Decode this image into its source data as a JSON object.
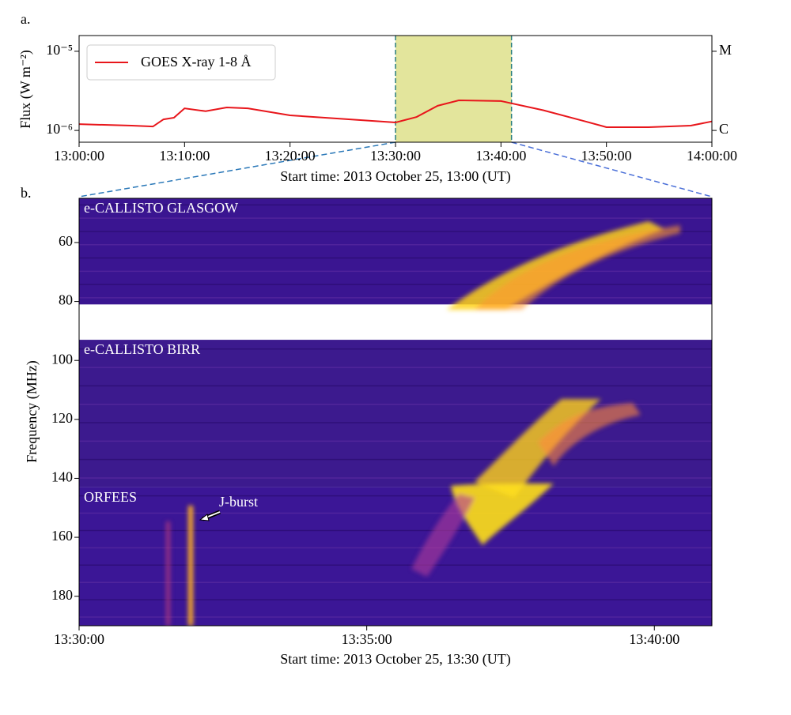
{
  "panel_a": {
    "label": "a."
  },
  "panel_b": {
    "label": "b."
  },
  "chart_data": [
    {
      "type": "line",
      "ylabel": "Flux (W m⁻²)",
      "xlabel": "Start time: 2013 October 25, 13:00 (UT)",
      "log_y": true,
      "x": [
        0,
        5,
        7,
        8,
        9,
        10,
        12,
        14,
        16,
        20,
        25,
        30,
        32,
        34,
        36,
        40,
        44,
        48,
        50,
        54,
        58,
        60
      ],
      "series": [
        {
          "name": "GOES X-ray 1-8 Å",
          "color": "#e8161b",
          "values": [
            1.2e-06,
            1.15e-06,
            1.12e-06,
            1.38e-06,
            1.45e-06,
            1.9e-06,
            1.75e-06,
            1.95e-06,
            1.9e-06,
            1.55e-06,
            1.4e-06,
            1.26e-06,
            1.48e-06,
            2.05e-06,
            2.4e-06,
            2.35e-06,
            1.8e-06,
            1.3e-06,
            1.1e-06,
            1.1e-06,
            1.15e-06,
            1.3e-06
          ]
        }
      ],
      "highlight": [
        30,
        41
      ],
      "highlight_color": "#e3e59c",
      "xlim": [
        0,
        60
      ],
      "xticks": [
        {
          "value": 0,
          "label": "13:00:00"
        },
        {
          "value": 10,
          "label": "13:10:00"
        },
        {
          "value": 20,
          "label": "13:20:00"
        },
        {
          "value": 30,
          "label": "13:30:00"
        },
        {
          "value": 40,
          "label": "13:40:00"
        },
        {
          "value": 50,
          "label": "13:50:00"
        },
        {
          "value": 60,
          "label": "14:00:00"
        }
      ],
      "ylim": [
        7.1e-07,
        1.58e-05
      ],
      "yticks": [
        {
          "value": 1e-06,
          "label": "10⁻⁶"
        },
        {
          "value": 1e-05,
          "label": "10⁻⁵"
        }
      ],
      "y2lim": [
        7.1e-07,
        1.58e-05
      ],
      "y2ticks": [
        {
          "value": 1e-06,
          "label": "C"
        },
        {
          "value": 1e-05,
          "label": "M"
        }
      ],
      "legend": "upper left"
    },
    {
      "type": "spectrogram",
      "ylabel": "Frequency (MHz)",
      "xlabel": "Start time: 2013 October 25, 13:30 (UT)",
      "xlim": [
        0,
        11
      ],
      "xticks": [
        {
          "value": 0,
          "label": "13:30:00"
        },
        {
          "value": 5,
          "label": "13:35:00"
        },
        {
          "value": 10,
          "label": "13:40:00"
        }
      ],
      "ylim": [
        190,
        45
      ],
      "yticks": [
        60,
        80,
        100,
        120,
        140,
        160,
        180
      ],
      "instruments": [
        {
          "name": "e-CALLISTO GLASGOW",
          "range": [
            45,
            81
          ]
        },
        {
          "name": "e-CALLISTO BIRR",
          "range": [
            93,
            143
          ]
        },
        {
          "name": "ORFEES",
          "range": [
            143,
            190
          ]
        }
      ],
      "annotation": "J-burst"
    }
  ]
}
